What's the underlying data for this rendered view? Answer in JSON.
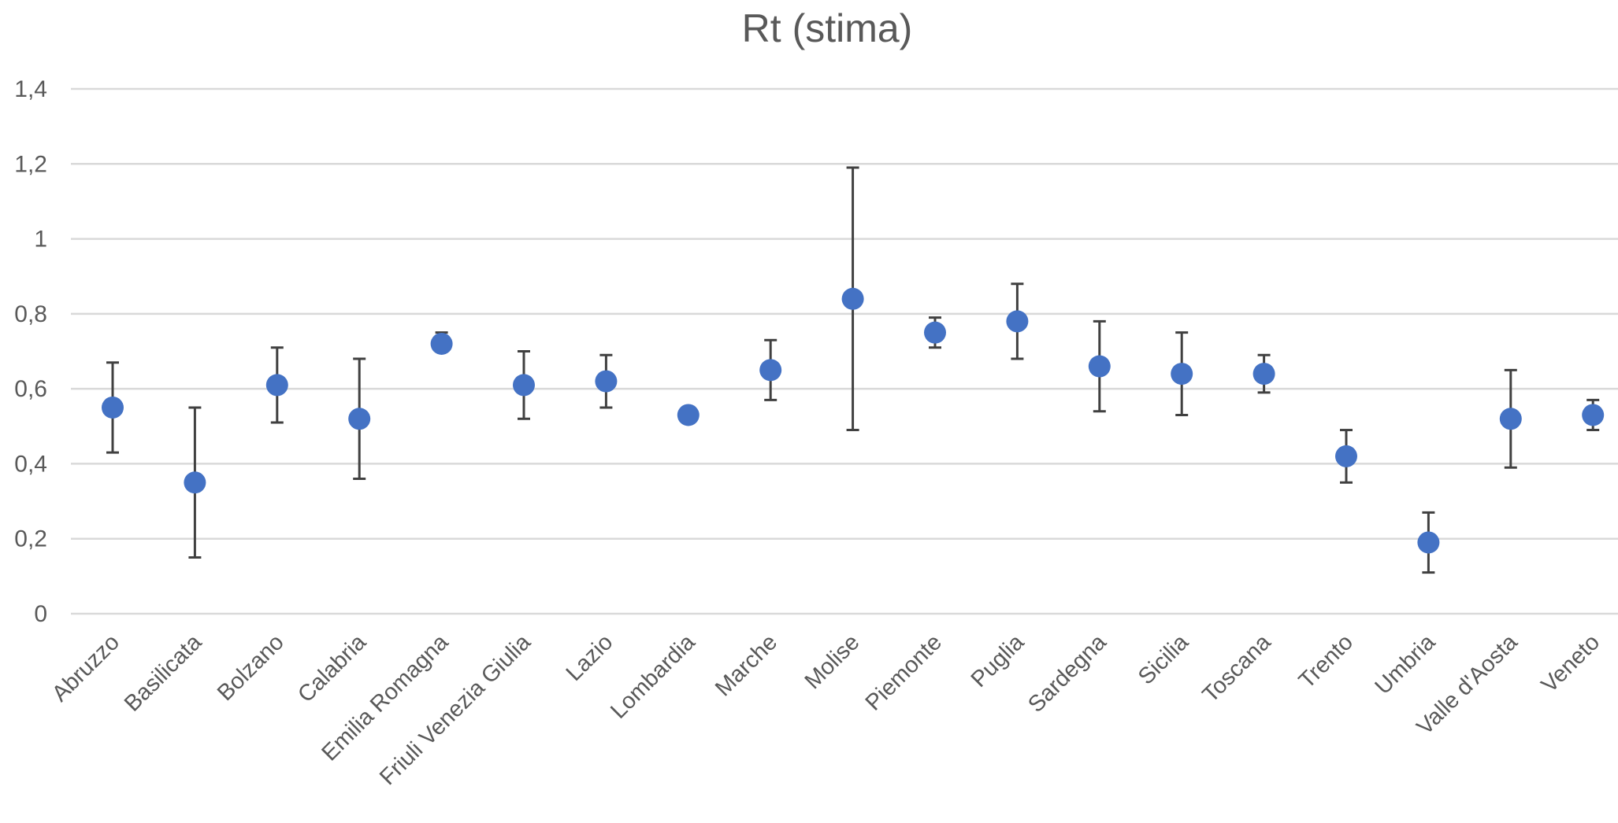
{
  "chart_data": {
    "type": "scatter",
    "title": "Rt (stima)",
    "xlabel": "",
    "ylabel": "",
    "ylim": [
      0,
      1.4
    ],
    "yticks": [
      "0",
      "0,2",
      "0,4",
      "0,6",
      "0,8",
      "1",
      "1,2",
      "1,4"
    ],
    "grid": true,
    "legend": "none",
    "categories": [
      "Abruzzo",
      "Basilicata",
      "Bolzano",
      "Calabria",
      "Emilia Romagna",
      "Friuli Venezia Giulia",
      "Lazio",
      "Lombardia",
      "Marche",
      "Molise",
      "Piemonte",
      "Puglia",
      "Sardegna",
      "Sicilia",
      "Toscana",
      "Trento",
      "Umbria",
      "Valle d'Aosta",
      "Veneto"
    ],
    "series": [
      {
        "values": [
          0.55,
          0.35,
          0.61,
          0.52,
          0.72,
          0.61,
          0.62,
          0.53,
          0.65,
          0.84,
          0.75,
          0.78,
          0.66,
          0.64,
          0.64,
          0.42,
          0.19,
          0.52,
          0.53
        ],
        "lower": [
          0.43,
          0.15,
          0.51,
          0.36,
          0.7,
          0.52,
          0.55,
          0.52,
          0.57,
          0.49,
          0.71,
          0.68,
          0.54,
          0.53,
          0.59,
          0.35,
          0.11,
          0.39,
          0.49
        ],
        "upper": [
          0.67,
          0.55,
          0.71,
          0.68,
          0.75,
          0.7,
          0.69,
          0.54,
          0.73,
          1.19,
          0.79,
          0.88,
          0.78,
          0.75,
          0.69,
          0.49,
          0.27,
          0.65,
          0.57
        ]
      }
    ],
    "colors": {
      "marker": "#4472C4",
      "errorbar": "#404040",
      "grid": "#D9D9D9",
      "text": "#595959"
    }
  }
}
